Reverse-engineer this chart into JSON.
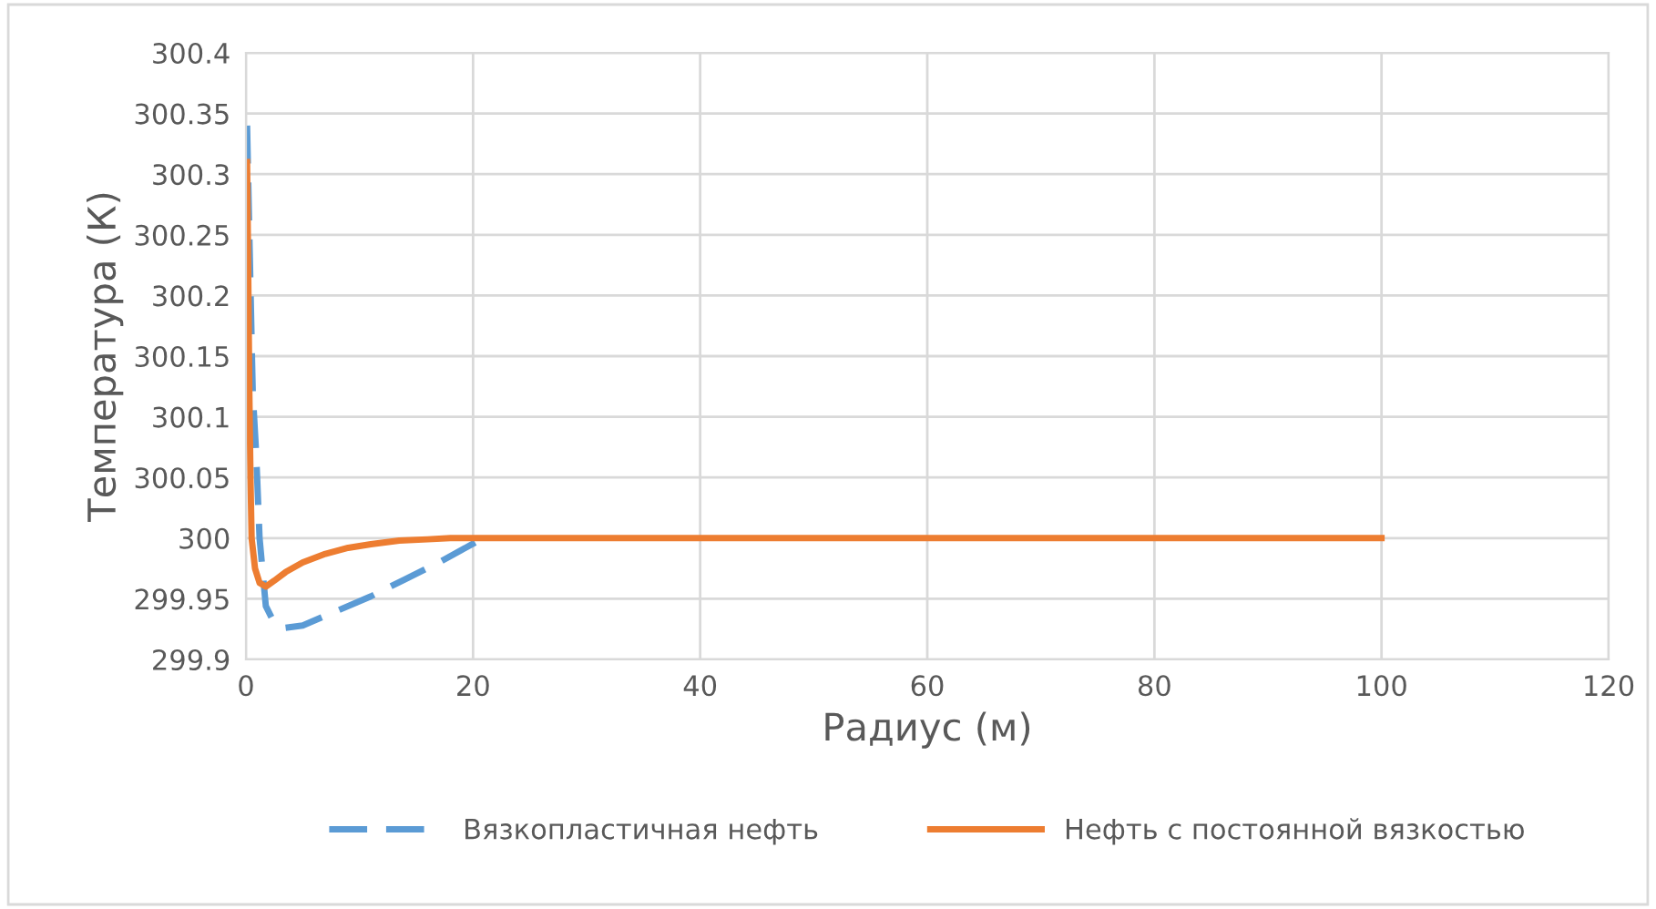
{
  "chart_data": {
    "type": "line",
    "xlabel": "Радиус (м)",
    "ylabel": "Температура (К)",
    "xlim": [
      0,
      120
    ],
    "xticks": [
      0,
      20,
      40,
      60,
      80,
      100,
      120
    ],
    "ylim": [
      299.9,
      300.4
    ],
    "yticks": [
      299.9,
      299.95,
      300,
      300.05,
      300.1,
      300.15,
      300.2,
      300.25,
      300.3,
      300.35,
      300.4
    ],
    "grid": true,
    "legend": "bottom",
    "series": [
      {
        "name": "Вязкопластичная нефть",
        "color": "#5b9bd5",
        "line_style": "dashed",
        "x": [
          0.1,
          0.3,
          0.6,
          0.9,
          1.2,
          1.75,
          2.5,
          3.4,
          5,
          8,
          11,
          14,
          17,
          20.3
        ],
        "values": [
          300.34,
          300.25,
          300.12,
          300.07,
          300.0,
          299.944,
          299.93,
          299.926,
          299.928,
          299.94,
          299.952,
          299.966,
          299.98,
          299.997
        ]
      },
      {
        "name": "Нефть с постоянной вязкостью",
        "color": "#ed7d31",
        "line_style": "solid",
        "x": [
          0.1,
          0.2,
          0.3,
          0.4,
          0.5,
          0.8,
          1.2,
          1.75,
          2.5,
          3.5,
          5,
          7,
          9,
          11,
          13.5,
          16,
          18,
          20,
          40,
          60,
          80,
          100
        ],
        "values": [
          300.31,
          300.22,
          300.12,
          300.05,
          300.0,
          299.975,
          299.963,
          299.96,
          299.965,
          299.972,
          299.98,
          299.987,
          299.992,
          299.995,
          299.998,
          299.999,
          300.0,
          300.0,
          300.0,
          300.0,
          300.0,
          300.0
        ]
      }
    ]
  }
}
